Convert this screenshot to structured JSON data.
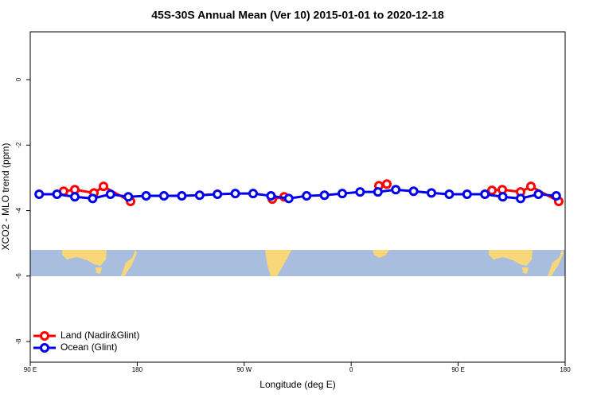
{
  "chart_data": {
    "type": "line",
    "title": "45S-30S Annual Mean (Ver 10)   2015-01-01 to 2020-12-18",
    "x_label": "Longitude (deg E)",
    "y_label": "XCO2 - MLO trend (ppm)",
    "xlim": [
      90,
      540
    ],
    "ylim": [
      -8.63,
      1.46
    ],
    "xticks": [
      {
        "value": 90,
        "label": "90 E"
      },
      {
        "value": 180,
        "label": "180"
      },
      {
        "value": 270,
        "label": "90 W"
      },
      {
        "value": 360,
        "label": "0"
      },
      {
        "value": 450,
        "label": "90 E"
      },
      {
        "value": 540,
        "label": "180"
      }
    ],
    "yticks": [
      0,
      -2,
      -4,
      -6,
      -8
    ],
    "legend": "bottom-left",
    "series": [
      {
        "name": "Land (Nadir&Glint)",
        "color": "#ff0000",
        "x": [
          118.1,
          127.5,
          143.6,
          151.6,
          174.4,
          null,
          293.6,
          303.6,
          null,
          383.3,
          390.0,
          null,
          478.4,
          487.1,
          502.5,
          511.2,
          534.6
        ],
        "values": [
          -3.41,
          -3.36,
          -3.46,
          -3.26,
          -3.72,
          null,
          -3.65,
          -3.58,
          null,
          -3.24,
          -3.19,
          null,
          -3.38,
          -3.36,
          -3.43,
          -3.26,
          -3.72
        ]
      },
      {
        "name": "Ocean (Glint)",
        "color": "#0000ee",
        "x": [
          97.5,
          112.5,
          127.5,
          142.5,
          157.5,
          172.5,
          187.5,
          202.5,
          217.5,
          232.5,
          247.5,
          262.5,
          277.5,
          292.5,
          307.5,
          322.5,
          337.5,
          352.5,
          367.5,
          382.5,
          397.5,
          412.5,
          427.5,
          442.5,
          457.5,
          472.5,
          487.5,
          502.5,
          517.5,
          532.5
        ],
        "values": [
          -3.5,
          -3.5,
          -3.58,
          -3.63,
          -3.5,
          -3.58,
          -3.55,
          -3.55,
          -3.55,
          -3.53,
          -3.5,
          -3.48,
          -3.48,
          -3.55,
          -3.63,
          -3.55,
          -3.53,
          -3.48,
          -3.43,
          -3.43,
          -3.36,
          -3.41,
          -3.46,
          -3.5,
          -3.5,
          -3.5,
          -3.58,
          -3.63,
          -3.5,
          -3.55
        ]
      }
    ]
  }
}
